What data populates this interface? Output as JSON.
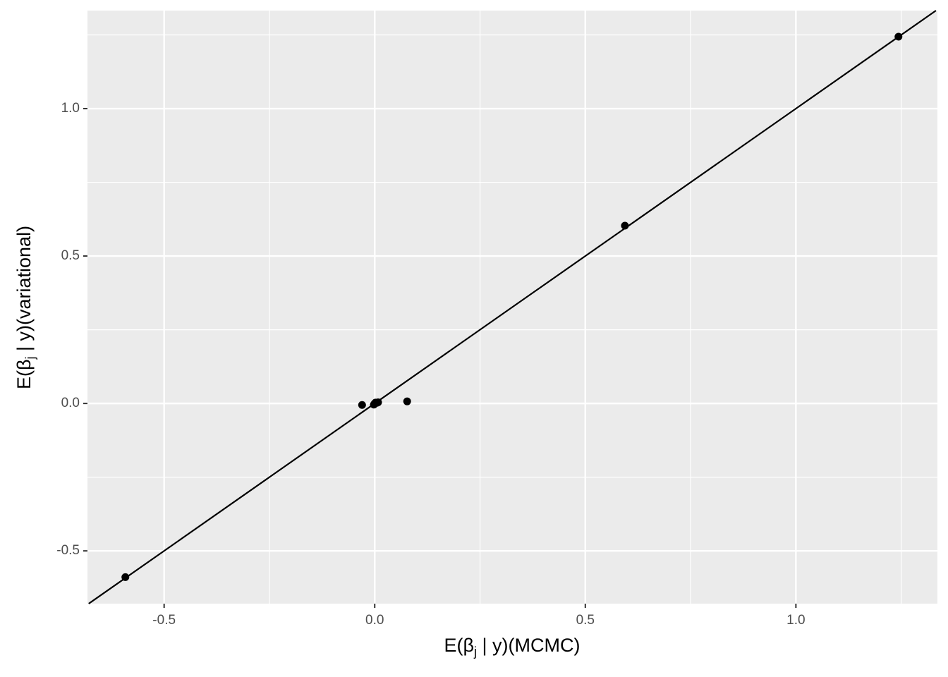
{
  "chart_data": {
    "type": "scatter",
    "x_label": [
      "E(β",
      "j",
      " | y)(MCMC)"
    ],
    "y_label": [
      "E(β",
      "j",
      " | y)(variational)"
    ],
    "x": [
      -0.592,
      1.2435,
      0.594,
      -0.03,
      0.077,
      0.0,
      0.002,
      0.008,
      -0.002,
      0.005
    ],
    "values": [
      -0.589,
      1.244,
      0.603,
      -0.005,
      0.007,
      0.0,
      0.003,
      0.004,
      -0.004,
      0.002
    ],
    "color": "#000000",
    "abline": {
      "slope": 1,
      "intercept": 0
    },
    "xlim": [
      -0.682,
      1.336
    ],
    "ylim": [
      -0.679,
      1.3325
    ],
    "xticks": [
      -0.5,
      {
        "value": 0,
        "label": "0.0"
      },
      0.5,
      {
        "value": 1,
        "label": "1.0"
      }
    ],
    "yticks": [
      -0.5,
      {
        "value": 0,
        "label": "0.0"
      },
      0.5,
      {
        "value": 1,
        "label": "1.0"
      }
    ],
    "x_minor": [
      -0.25,
      0.25,
      0.75,
      1.25
    ],
    "y_minor": [
      -0.25,
      0.25,
      0.75,
      1.25
    ],
    "grid": true
  }
}
